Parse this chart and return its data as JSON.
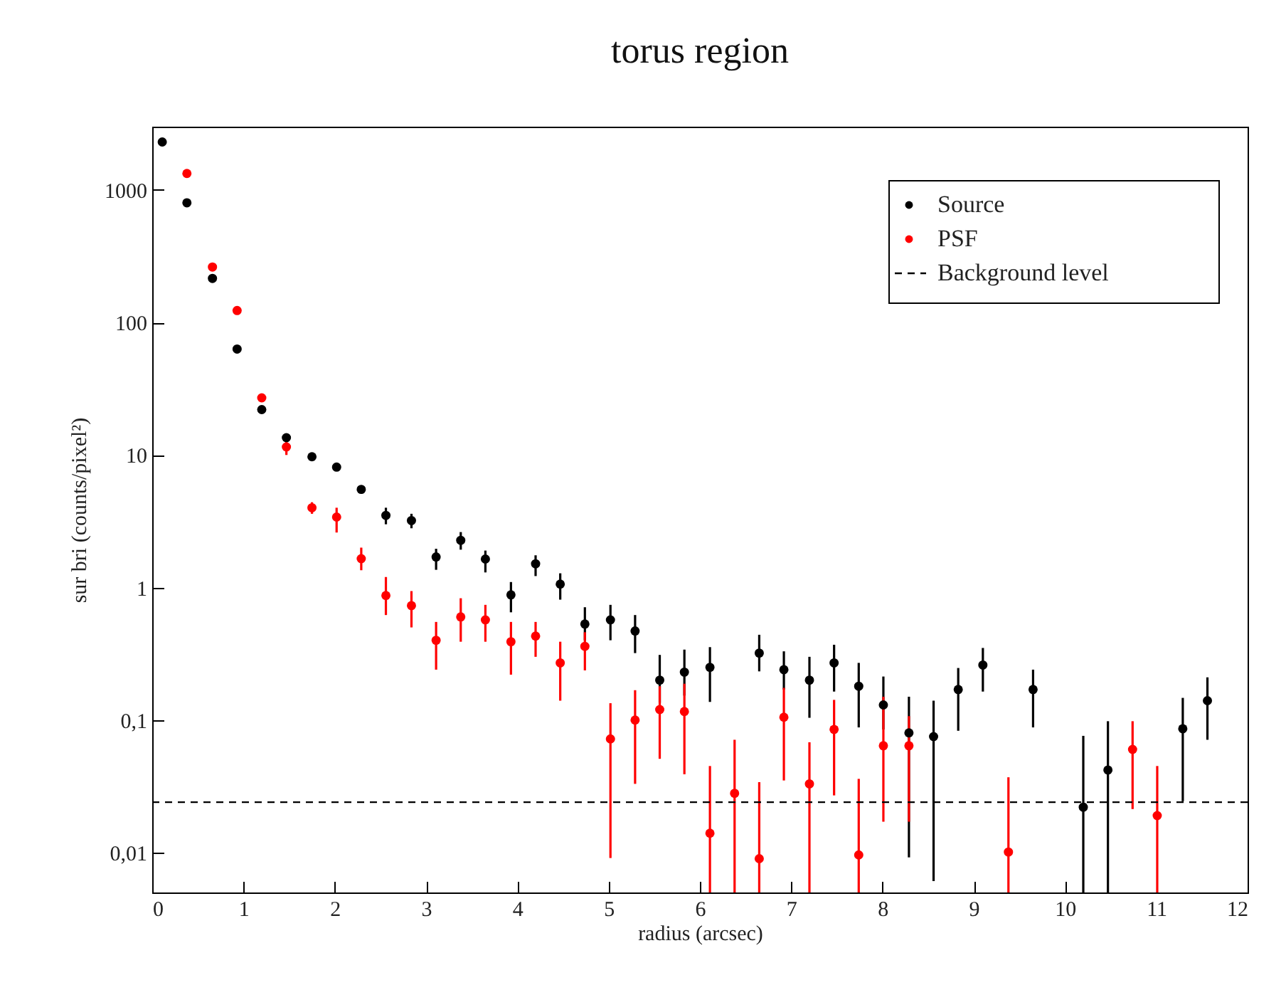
{
  "chart_data": {
    "type": "scatter",
    "title": "torus region",
    "xlabel": "radius (arcsec)",
    "ylabel": "sur bri (counts/pixel²)",
    "x": [
      0.11,
      0.38,
      0.66,
      0.93,
      1.2,
      1.47,
      1.75,
      2.02,
      2.29,
      2.56,
      2.84,
      3.11,
      3.38,
      3.65,
      3.93,
      4.2,
      4.47,
      4.74,
      5.02,
      5.29,
      5.56,
      5.83,
      6.11,
      6.38,
      6.65,
      6.92,
      7.2,
      7.47,
      7.74,
      8.01,
      8.29,
      8.56,
      8.83,
      9.1,
      9.38,
      9.65,
      10.2,
      10.47,
      10.74,
      11.01,
      11.29,
      11.56
    ],
    "series": [
      {
        "name": "Source",
        "color": "#000000",
        "values": [
          2300,
          800,
          215,
          63,
          22,
          13.5,
          9.7,
          8.1,
          5.5,
          3.5,
          3.2,
          1.7,
          2.27,
          1.64,
          0.88,
          1.51,
          1.06,
          0.53,
          0.57,
          0.47,
          0.2,
          0.23,
          0.25,
          null,
          0.32,
          0.24,
          0.2,
          0.27,
          0.18,
          0.13,
          0.08,
          0.075,
          0.17,
          0.26,
          null,
          0.17,
          0.022,
          0.042,
          null,
          null,
          0.086,
          0.14
        ],
        "errors": [
          null,
          null,
          null,
          null,
          null,
          null,
          null,
          null,
          null,
          [
            3.0,
            4.0
          ],
          [
            2.8,
            3.6
          ],
          [
            1.36,
            1.96
          ],
          [
            1.93,
            2.62
          ],
          [
            1.3,
            1.9
          ],
          [
            0.65,
            1.1
          ],
          [
            1.22,
            1.75
          ],
          [
            0.81,
            1.28
          ],
          [
            0.4,
            0.71
          ],
          [
            0.4,
            0.74
          ],
          [
            0.32,
            0.62
          ],
          [
            0.135,
            0.31
          ],
          [
            0.153,
            0.34
          ],
          [
            0.137,
            0.355
          ],
          null,
          [
            0.233,
            0.44
          ],
          [
            0.17,
            0.33
          ],
          [
            0.104,
            0.3
          ],
          [
            0.164,
            0.37
          ],
          [
            0.088,
            0.27
          ],
          [
            0.085,
            0.213
          ],
          [
            0.0092,
            0.15
          ],
          [
            0.0061,
            0.14
          ],
          [
            0.083,
            0.247
          ],
          [
            0.164,
            0.35
          ],
          null,
          [
            0.088,
            0.24
          ],
          [
            0.005,
            0.076
          ],
          [
            0.005,
            0.098
          ],
          null,
          null,
          [
            0.0244,
            0.147
          ],
          [
            0.071,
            0.21
          ]
        ]
      },
      {
        "name": "PSF",
        "color": "#ff0000",
        "values": [
          null,
          1330,
          262,
          123,
          27,
          11.5,
          4.0,
          3.4,
          1.65,
          0.87,
          0.73,
          0.4,
          0.6,
          0.57,
          0.39,
          0.43,
          0.27,
          0.36,
          0.072,
          0.1,
          0.12,
          0.116,
          0.014,
          0.028,
          0.009,
          0.105,
          0.033,
          0.085,
          0.0096,
          0.064,
          0.064,
          null,
          null,
          null,
          0.0101,
          null,
          null,
          null,
          0.06,
          0.019,
          null,
          null
        ],
        "errors": [
          null,
          null,
          null,
          null,
          null,
          [
            10,
            13.3
          ],
          [
            3.6,
            4.4
          ],
          [
            2.6,
            4.0
          ],
          [
            1.35,
            2.0
          ],
          [
            0.62,
            1.2
          ],
          [
            0.5,
            0.94
          ],
          [
            0.24,
            0.55
          ],
          [
            0.39,
            0.83
          ],
          [
            0.39,
            0.74
          ],
          [
            0.22,
            0.55
          ],
          [
            0.3,
            0.55
          ],
          [
            0.14,
            0.39
          ],
          [
            0.237,
            0.46
          ],
          [
            0.0091,
            0.134
          ],
          [
            0.033,
            0.168
          ],
          [
            0.051,
            0.18
          ],
          [
            0.039,
            0.188
          ],
          [
            0.005,
            0.045
          ],
          [
            0.005,
            0.071
          ],
          [
            0.005,
            0.034
          ],
          [
            0.035,
            0.175
          ],
          [
            0.005,
            0.068
          ],
          [
            0.027,
            0.142
          ],
          [
            0.005,
            0.036
          ],
          [
            0.0171,
            0.15
          ],
          [
            0.0171,
            0.107
          ],
          null,
          null,
          null,
          [
            0.005,
            0.037
          ],
          null,
          null,
          null,
          [
            0.0213,
            0.098
          ],
          [
            0.005,
            0.045
          ],
          null,
          null
        ]
      }
    ],
    "ref_lines": [
      {
        "axis": "y",
        "value": 0.024,
        "label": "Background level",
        "color": "#000000",
        "line_style": "dashed"
      }
    ],
    "xlim": [
      0,
      12
    ],
    "xticks": [
      0,
      1,
      2,
      3,
      4,
      5,
      6,
      7,
      8,
      9,
      10,
      11,
      12
    ],
    "ylim": [
      0.005,
      3000
    ],
    "yticks": [
      {
        "value": 0.01,
        "label": "0,01"
      },
      {
        "value": 0.1,
        "label": "0,1"
      },
      1,
      10,
      100,
      1000
    ],
    "log": true,
    "grid": false,
    "legend": "top right",
    "marker": "circle"
  }
}
